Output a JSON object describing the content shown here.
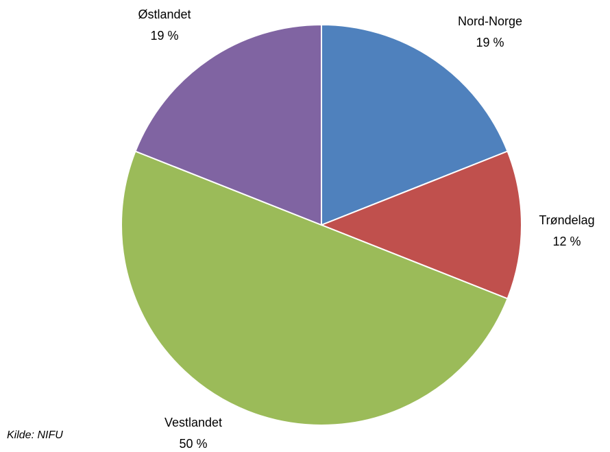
{
  "chart_data": {
    "type": "pie",
    "categories": [
      "Nord-Norge",
      "Trøndelag",
      "Vestlandet",
      "Østlandet"
    ],
    "values": [
      19,
      12,
      50,
      19
    ],
    "value_labels": [
      "19 %",
      "12 %",
      "50 %",
      "19 %"
    ],
    "colors": [
      "#4f81bd",
      "#c0504d",
      "#9bbb59",
      "#8064a2"
    ],
    "annotation": "Kilde: NIFU"
  }
}
